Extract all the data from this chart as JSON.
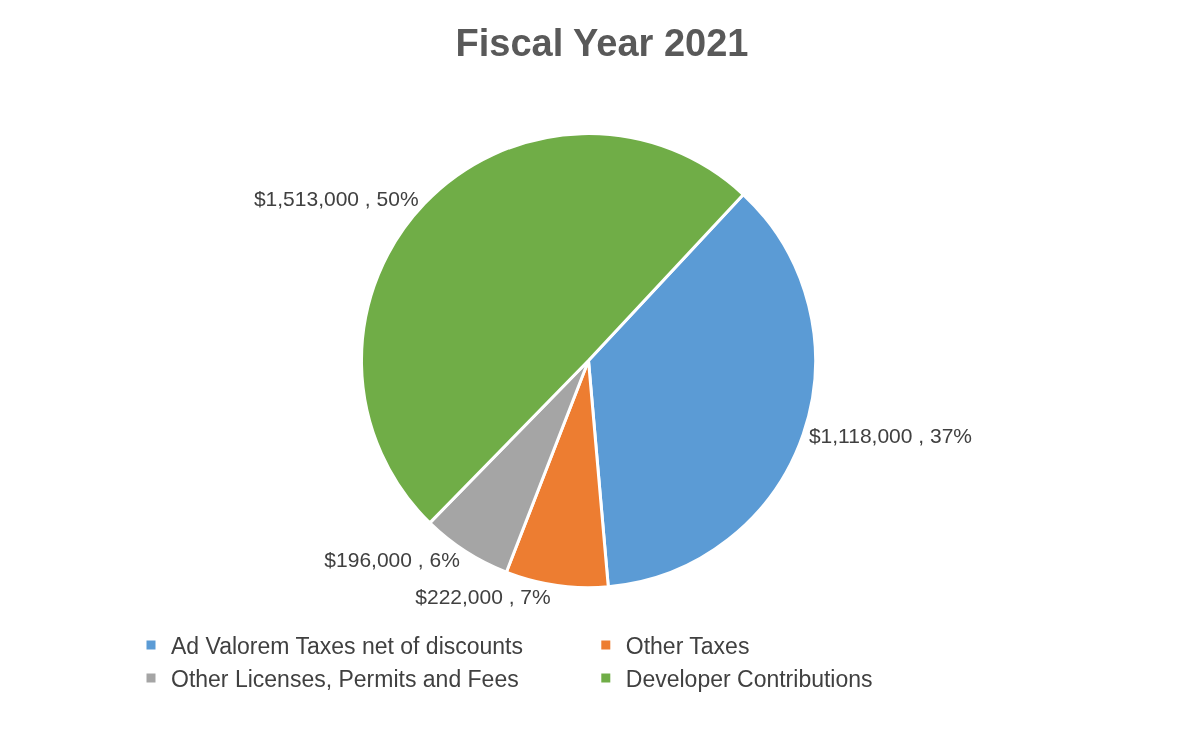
{
  "chart_data": {
    "type": "pie",
    "title": "Fiscal Year 2021",
    "categories": [
      "Ad Valorem Taxes net of discounts",
      "Other Taxes",
      "Other Licenses, Permits and Fees",
      "Developer Contributions"
    ],
    "values": [
      1118000,
      222000,
      196000,
      1513000
    ],
    "colors": [
      "#5b9bd5",
      "#ed7d31",
      "#a5a5a5",
      "#70ad47"
    ],
    "value_labels": [
      "$1,118,000 , 37%",
      "$222,000 , 7%",
      "$196,000 , 6%",
      "$1,513,000 , 50%"
    ],
    "legend": "bottom"
  }
}
